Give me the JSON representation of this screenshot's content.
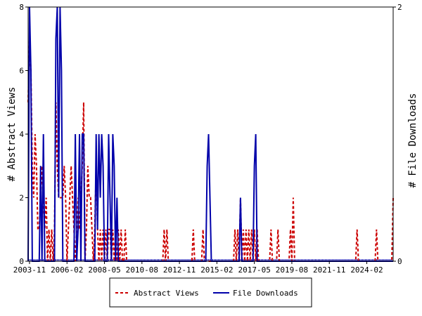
{
  "chart_data": {
    "type": "line",
    "ylabel_left": "# Abstract Views",
    "ylabel_right": "# File Downloads",
    "ylim_left": [
      0,
      8
    ],
    "ylim_right": [
      0,
      2
    ],
    "x_range": [
      "2003-10",
      "2025-09"
    ],
    "x_ticks": [
      "2003-11",
      "2006-02",
      "2008-05",
      "2010-08",
      "2012-11",
      "2015-02",
      "2017-05",
      "2019-08",
      "2021-11",
      "2024-02"
    ],
    "y_ticks_left": [
      "0",
      "2",
      "4",
      "6",
      "8"
    ],
    "y_ticks_right": [
      "0",
      "2"
    ],
    "legend_position": "bottom",
    "colors": {
      "abstract_views": "#cc0000",
      "file_downloads": "#0000aa"
    },
    "series": [
      {
        "name": "Abstract Views",
        "axis": "left",
        "style": "dashed",
        "points": [
          [
            "2003-10",
            5
          ],
          [
            "2003-11",
            7
          ],
          [
            "2003-12",
            6
          ],
          [
            "2004-01",
            3
          ],
          [
            "2004-02",
            2
          ],
          [
            "2004-03",
            4
          ],
          [
            "2004-04",
            3
          ],
          [
            "2004-05",
            1
          ],
          [
            "2004-06",
            1
          ],
          [
            "2004-07",
            2
          ],
          [
            "2004-08",
            3
          ],
          [
            "2004-09",
            2
          ],
          [
            "2004-10",
            1
          ],
          [
            "2004-11",
            2
          ],
          [
            "2004-12",
            0
          ],
          [
            "2005-01",
            1
          ],
          [
            "2005-02",
            0
          ],
          [
            "2005-03",
            1
          ],
          [
            "2005-04",
            0
          ],
          [
            "2005-05",
            1
          ],
          [
            "2005-06",
            5
          ],
          [
            "2005-07",
            3
          ],
          [
            "2005-08",
            2
          ],
          [
            "2005-09",
            2
          ],
          [
            "2005-10",
            2
          ],
          [
            "2005-11",
            2
          ],
          [
            "2005-12",
            3
          ],
          [
            "2006-01",
            2
          ],
          [
            "2006-02",
            0
          ],
          [
            "2006-03",
            1
          ],
          [
            "2006-04",
            2
          ],
          [
            "2006-05",
            3
          ],
          [
            "2006-06",
            2
          ],
          [
            "2006-07",
            1
          ],
          [
            "2006-08",
            0
          ],
          [
            "2006-09",
            1
          ],
          [
            "2006-10",
            2
          ],
          [
            "2006-11",
            1
          ],
          [
            "2006-12",
            2
          ],
          [
            "2007-01",
            3
          ],
          [
            "2007-02",
            5
          ],
          [
            "2007-03",
            0
          ],
          [
            "2007-04",
            1
          ],
          [
            "2007-05",
            3
          ],
          [
            "2007-06",
            2
          ],
          [
            "2007-07",
            2
          ],
          [
            "2007-08",
            1
          ],
          [
            "2007-09",
            0
          ],
          [
            "2007-10",
            1
          ],
          [
            "2007-11",
            3
          ],
          [
            "2007-12",
            1
          ],
          [
            "2008-01",
            0
          ],
          [
            "2008-02",
            1
          ],
          [
            "2008-03",
            0
          ],
          [
            "2008-04",
            1
          ],
          [
            "2008-05",
            0
          ],
          [
            "2008-06",
            1
          ],
          [
            "2008-07",
            0
          ],
          [
            "2008-08",
            1
          ],
          [
            "2008-09",
            1
          ],
          [
            "2008-10",
            0
          ],
          [
            "2008-11",
            1
          ],
          [
            "2008-12",
            0
          ],
          [
            "2009-01",
            1
          ],
          [
            "2009-02",
            0
          ],
          [
            "2009-03",
            1
          ],
          [
            "2009-04",
            0
          ],
          [
            "2009-05",
            1
          ],
          [
            "2009-06",
            0
          ],
          [
            "2009-07",
            0
          ],
          [
            "2009-08",
            1
          ],
          [
            "2009-09",
            0
          ],
          [
            "2011-11",
            0
          ],
          [
            "2011-12",
            1
          ],
          [
            "2012-01",
            0
          ],
          [
            "2012-02",
            1
          ],
          [
            "2012-03",
            0
          ],
          [
            "2013-08",
            0
          ],
          [
            "2013-09",
            1
          ],
          [
            "2013-10",
            0
          ],
          [
            "2014-03",
            0
          ],
          [
            "2014-04",
            1
          ],
          [
            "2014-05",
            0
          ],
          [
            "2016-02",
            0
          ],
          [
            "2016-03",
            1
          ],
          [
            "2016-04",
            0
          ],
          [
            "2016-05",
            1
          ],
          [
            "2016-06",
            0
          ],
          [
            "2016-07",
            2
          ],
          [
            "2016-08",
            0
          ],
          [
            "2016-09",
            1
          ],
          [
            "2016-10",
            0
          ],
          [
            "2016-11",
            1
          ],
          [
            "2016-12",
            0
          ],
          [
            "2017-01",
            1
          ],
          [
            "2017-02",
            0
          ],
          [
            "2017-03",
            1
          ],
          [
            "2017-04",
            0
          ],
          [
            "2017-05",
            1
          ],
          [
            "2017-06",
            0
          ],
          [
            "2017-07",
            1
          ],
          [
            "2017-08",
            0
          ],
          [
            "2018-04",
            0
          ],
          [
            "2018-05",
            1
          ],
          [
            "2018-06",
            0
          ],
          [
            "2018-09",
            0
          ],
          [
            "2018-10",
            1
          ],
          [
            "2018-11",
            0
          ],
          [
            "2019-06",
            0
          ],
          [
            "2019-07",
            1
          ],
          [
            "2019-08",
            0
          ],
          [
            "2019-09",
            2
          ],
          [
            "2019-10",
            0
          ],
          [
            "2023-06",
            0
          ],
          [
            "2023-07",
            1
          ],
          [
            "2023-08",
            0
          ],
          [
            "2024-08",
            0
          ],
          [
            "2024-09",
            1
          ],
          [
            "2024-10",
            0
          ],
          [
            "2025-08",
            0
          ],
          [
            "2025-09",
            2
          ]
        ]
      },
      {
        "name": "File Downloads",
        "axis": "right",
        "style": "solid",
        "points": [
          [
            "2003-10",
            0
          ],
          [
            "2003-11",
            2
          ],
          [
            "2003-12",
            1.5
          ],
          [
            "2004-01",
            0
          ],
          [
            "2004-02",
            0
          ],
          [
            "2004-03",
            0
          ],
          [
            "2004-04",
            0
          ],
          [
            "2004-05",
            0
          ],
          [
            "2004-06",
            0
          ],
          [
            "2004-07",
            0.75
          ],
          [
            "2004-08",
            0
          ],
          [
            "2004-09",
            1
          ],
          [
            "2004-10",
            0
          ],
          [
            "2004-11",
            0
          ],
          [
            "2004-12",
            0
          ],
          [
            "2005-01",
            0
          ],
          [
            "2005-02",
            0
          ],
          [
            "2005-03",
            0
          ],
          [
            "2005-04",
            0
          ],
          [
            "2005-05",
            0
          ],
          [
            "2005-06",
            1.75
          ],
          [
            "2005-07",
            2
          ],
          [
            "2005-08",
            0.5
          ],
          [
            "2005-09",
            2
          ],
          [
            "2005-10",
            1.5
          ],
          [
            "2005-11",
            0
          ],
          [
            "2005-12",
            0
          ],
          [
            "2006-01",
            0
          ],
          [
            "2006-02",
            0
          ],
          [
            "2006-03",
            0
          ],
          [
            "2006-04",
            0
          ],
          [
            "2006-05",
            0
          ],
          [
            "2006-06",
            0
          ],
          [
            "2006-07",
            0
          ],
          [
            "2006-08",
            1
          ],
          [
            "2006-09",
            0
          ],
          [
            "2006-10",
            0.25
          ],
          [
            "2006-11",
            1
          ],
          [
            "2006-12",
            0
          ],
          [
            "2007-01",
            1
          ],
          [
            "2007-02",
            1
          ],
          [
            "2007-03",
            0
          ],
          [
            "2007-04",
            0
          ],
          [
            "2007-05",
            0
          ],
          [
            "2007-06",
            0
          ],
          [
            "2007-07",
            0
          ],
          [
            "2007-08",
            0
          ],
          [
            "2007-09",
            0
          ],
          [
            "2007-10",
            0
          ],
          [
            "2007-11",
            1
          ],
          [
            "2007-12",
            0.25
          ],
          [
            "2008-01",
            1
          ],
          [
            "2008-02",
            0.5
          ],
          [
            "2008-03",
            1
          ],
          [
            "2008-04",
            0.75
          ],
          [
            "2008-05",
            0
          ],
          [
            "2008-06",
            0
          ],
          [
            "2008-07",
            0
          ],
          [
            "2008-08",
            1
          ],
          [
            "2008-09",
            0.5
          ],
          [
            "2008-10",
            0
          ],
          [
            "2008-11",
            1
          ],
          [
            "2008-12",
            0.75
          ],
          [
            "2009-01",
            0
          ],
          [
            "2009-02",
            0.5
          ],
          [
            "2009-03",
            0
          ],
          [
            "2009-04",
            0
          ],
          [
            "2014-06",
            0
          ],
          [
            "2014-07",
            0.75
          ],
          [
            "2014-08",
            1
          ],
          [
            "2014-09",
            0.5
          ],
          [
            "2014-10",
            0
          ],
          [
            "2016-06",
            0
          ],
          [
            "2016-07",
            0.5
          ],
          [
            "2016-08",
            0
          ],
          [
            "2017-04",
            0
          ],
          [
            "2017-05",
            0.75
          ],
          [
            "2017-06",
            1
          ],
          [
            "2017-07",
            0
          ],
          [
            "2025-09",
            0
          ]
        ]
      }
    ]
  }
}
